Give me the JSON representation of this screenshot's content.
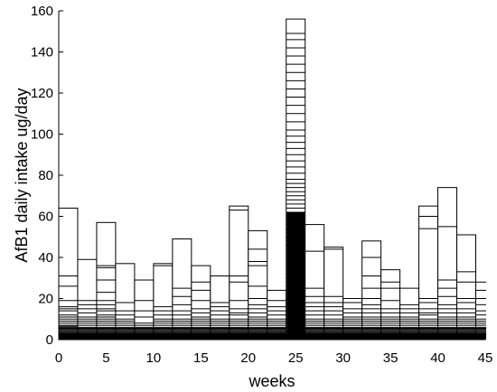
{
  "chart_data": {
    "type": "bar",
    "description_free": true,
    "xlabel": "weeks",
    "ylabel": "AfB1 daily intake ug/day",
    "xlim": [
      0,
      45
    ],
    "ylim": [
      0,
      160
    ],
    "xticks": [
      0,
      5,
      10,
      15,
      20,
      25,
      30,
      35,
      40,
      45
    ],
    "yticks": [
      0,
      20,
      40,
      60,
      80,
      100,
      120,
      140,
      160
    ],
    "grid": false,
    "legend": "none",
    "bar_width_weeks": 2,
    "weeks": [
      1,
      3,
      5,
      7,
      9,
      11,
      13,
      15,
      17,
      19,
      21,
      23,
      25,
      27,
      29,
      31,
      33,
      35,
      37,
      39,
      41,
      43,
      45
    ],
    "max_values": [
      64,
      39,
      57,
      37,
      29,
      37,
      49,
      36,
      31,
      65,
      53,
      24,
      156,
      56,
      45,
      20,
      48,
      34,
      25,
      65,
      74,
      51,
      28
    ],
    "sample_lines": [
      [
        31,
        26,
        19,
        16,
        15,
        14,
        12,
        11,
        10,
        9,
        8,
        7,
        6.5,
        6,
        5.5,
        5,
        4.5,
        4,
        3.5,
        3
      ],
      [
        19,
        17,
        15,
        13,
        11,
        10,
        9,
        8,
        7,
        6,
        5.5,
        5,
        4.5,
        4,
        3.5,
        3
      ],
      [
        36,
        35,
        29,
        23,
        19,
        17,
        15,
        14,
        12,
        11,
        10,
        9,
        8,
        7,
        6,
        5.5,
        5,
        4.5,
        4,
        3.5,
        3
      ],
      [
        18,
        14,
        12,
        10,
        9,
        8,
        7,
        6,
        5.5,
        5,
        4.5,
        4,
        3.5,
        3
      ],
      [
        19,
        14,
        11,
        8,
        7,
        6,
        5.5,
        5,
        4.5,
        4,
        3.5,
        3
      ],
      [
        36,
        16,
        14,
        12,
        10,
        9,
        8,
        7,
        6,
        5.5,
        5,
        4.5,
        4,
        3.5,
        3
      ],
      [
        25,
        21,
        17,
        14,
        12,
        10,
        9,
        8,
        7,
        6,
        5.5,
        5,
        4.5,
        4,
        3.5,
        3
      ],
      [
        28,
        24,
        19,
        15,
        13,
        11,
        10,
        9,
        8,
        7,
        6,
        5.5,
        5,
        4.5,
        4,
        3.5,
        3
      ],
      [
        18,
        16,
        14,
        12,
        10,
        9,
        8,
        7,
        6,
        5.5,
        5,
        4.5,
        4,
        3.5,
        3
      ],
      [
        63,
        31,
        28,
        19,
        15,
        13,
        12,
        10,
        9,
        8,
        7,
        6,
        5.5,
        5,
        4.5,
        4,
        3.5,
        3
      ],
      [
        44,
        38,
        36,
        26,
        20,
        17,
        15,
        13,
        11,
        10,
        9,
        8,
        7,
        6,
        5.5,
        5,
        4.5,
        4,
        3.5,
        3
      ],
      [
        19,
        16,
        14,
        12,
        10,
        9,
        8,
        7,
        6,
        5.5,
        5,
        4.5,
        4,
        3.5,
        3
      ],
      [
        149,
        146,
        142,
        138,
        134,
        130,
        126,
        122,
        118,
        114,
        110,
        106,
        102,
        99,
        96,
        93,
        90,
        87,
        84,
        81,
        78,
        76,
        74,
        72,
        70,
        68,
        66,
        64,
        62,
        60,
        58,
        56,
        54,
        52,
        50,
        48,
        46,
        44,
        42,
        40,
        38,
        36,
        34,
        32,
        30,
        28,
        26,
        24,
        22,
        20,
        18,
        16,
        14,
        12,
        10,
        8,
        6,
        4
      ],
      [
        43,
        25,
        21,
        18,
        16,
        14,
        12,
        10,
        9,
        8,
        7,
        6,
        5.5,
        5,
        4.5,
        4,
        3.5,
        3
      ],
      [
        44,
        21,
        18,
        16,
        14,
        12,
        10,
        9,
        8,
        7,
        6,
        5.5,
        5,
        4.5,
        4,
        3.5,
        3
      ],
      [
        18,
        15,
        13,
        11,
        10,
        9,
        8,
        7,
        6,
        5.5,
        5,
        4.5,
        4,
        3.5,
        3
      ],
      [
        40,
        31,
        25,
        20,
        17,
        15,
        13,
        11,
        10,
        9,
        8,
        7,
        6,
        5.5,
        5,
        4.5,
        4,
        3.5,
        3
      ],
      [
        28,
        25,
        19,
        15,
        13,
        11,
        10,
        9,
        8,
        7,
        6,
        5.5,
        5,
        4.5,
        4,
        3.5,
        3
      ],
      [
        17,
        15,
        13,
        11,
        10,
        9,
        8,
        7,
        6,
        5.5,
        5,
        4.5,
        4,
        3.5,
        3
      ],
      [
        60,
        54,
        20,
        18,
        15,
        13,
        12,
        10,
        9,
        8,
        7,
        6,
        5.5,
        5,
        4.5,
        4,
        3.5,
        3
      ],
      [
        55,
        29,
        25,
        21,
        17,
        15,
        13,
        11,
        10,
        9,
        8,
        7,
        6,
        5.5,
        5,
        4.5,
        4,
        3.5,
        3
      ],
      [
        33,
        28,
        20,
        18,
        15,
        13,
        11,
        10,
        9,
        8,
        7,
        6,
        5.5,
        5,
        4.5,
        4,
        3.5,
        3
      ],
      [
        24,
        20,
        17,
        14,
        12,
        10,
        9,
        8,
        7,
        6,
        5.5,
        5,
        4.5,
        4,
        3.5,
        3
      ]
    ]
  }
}
